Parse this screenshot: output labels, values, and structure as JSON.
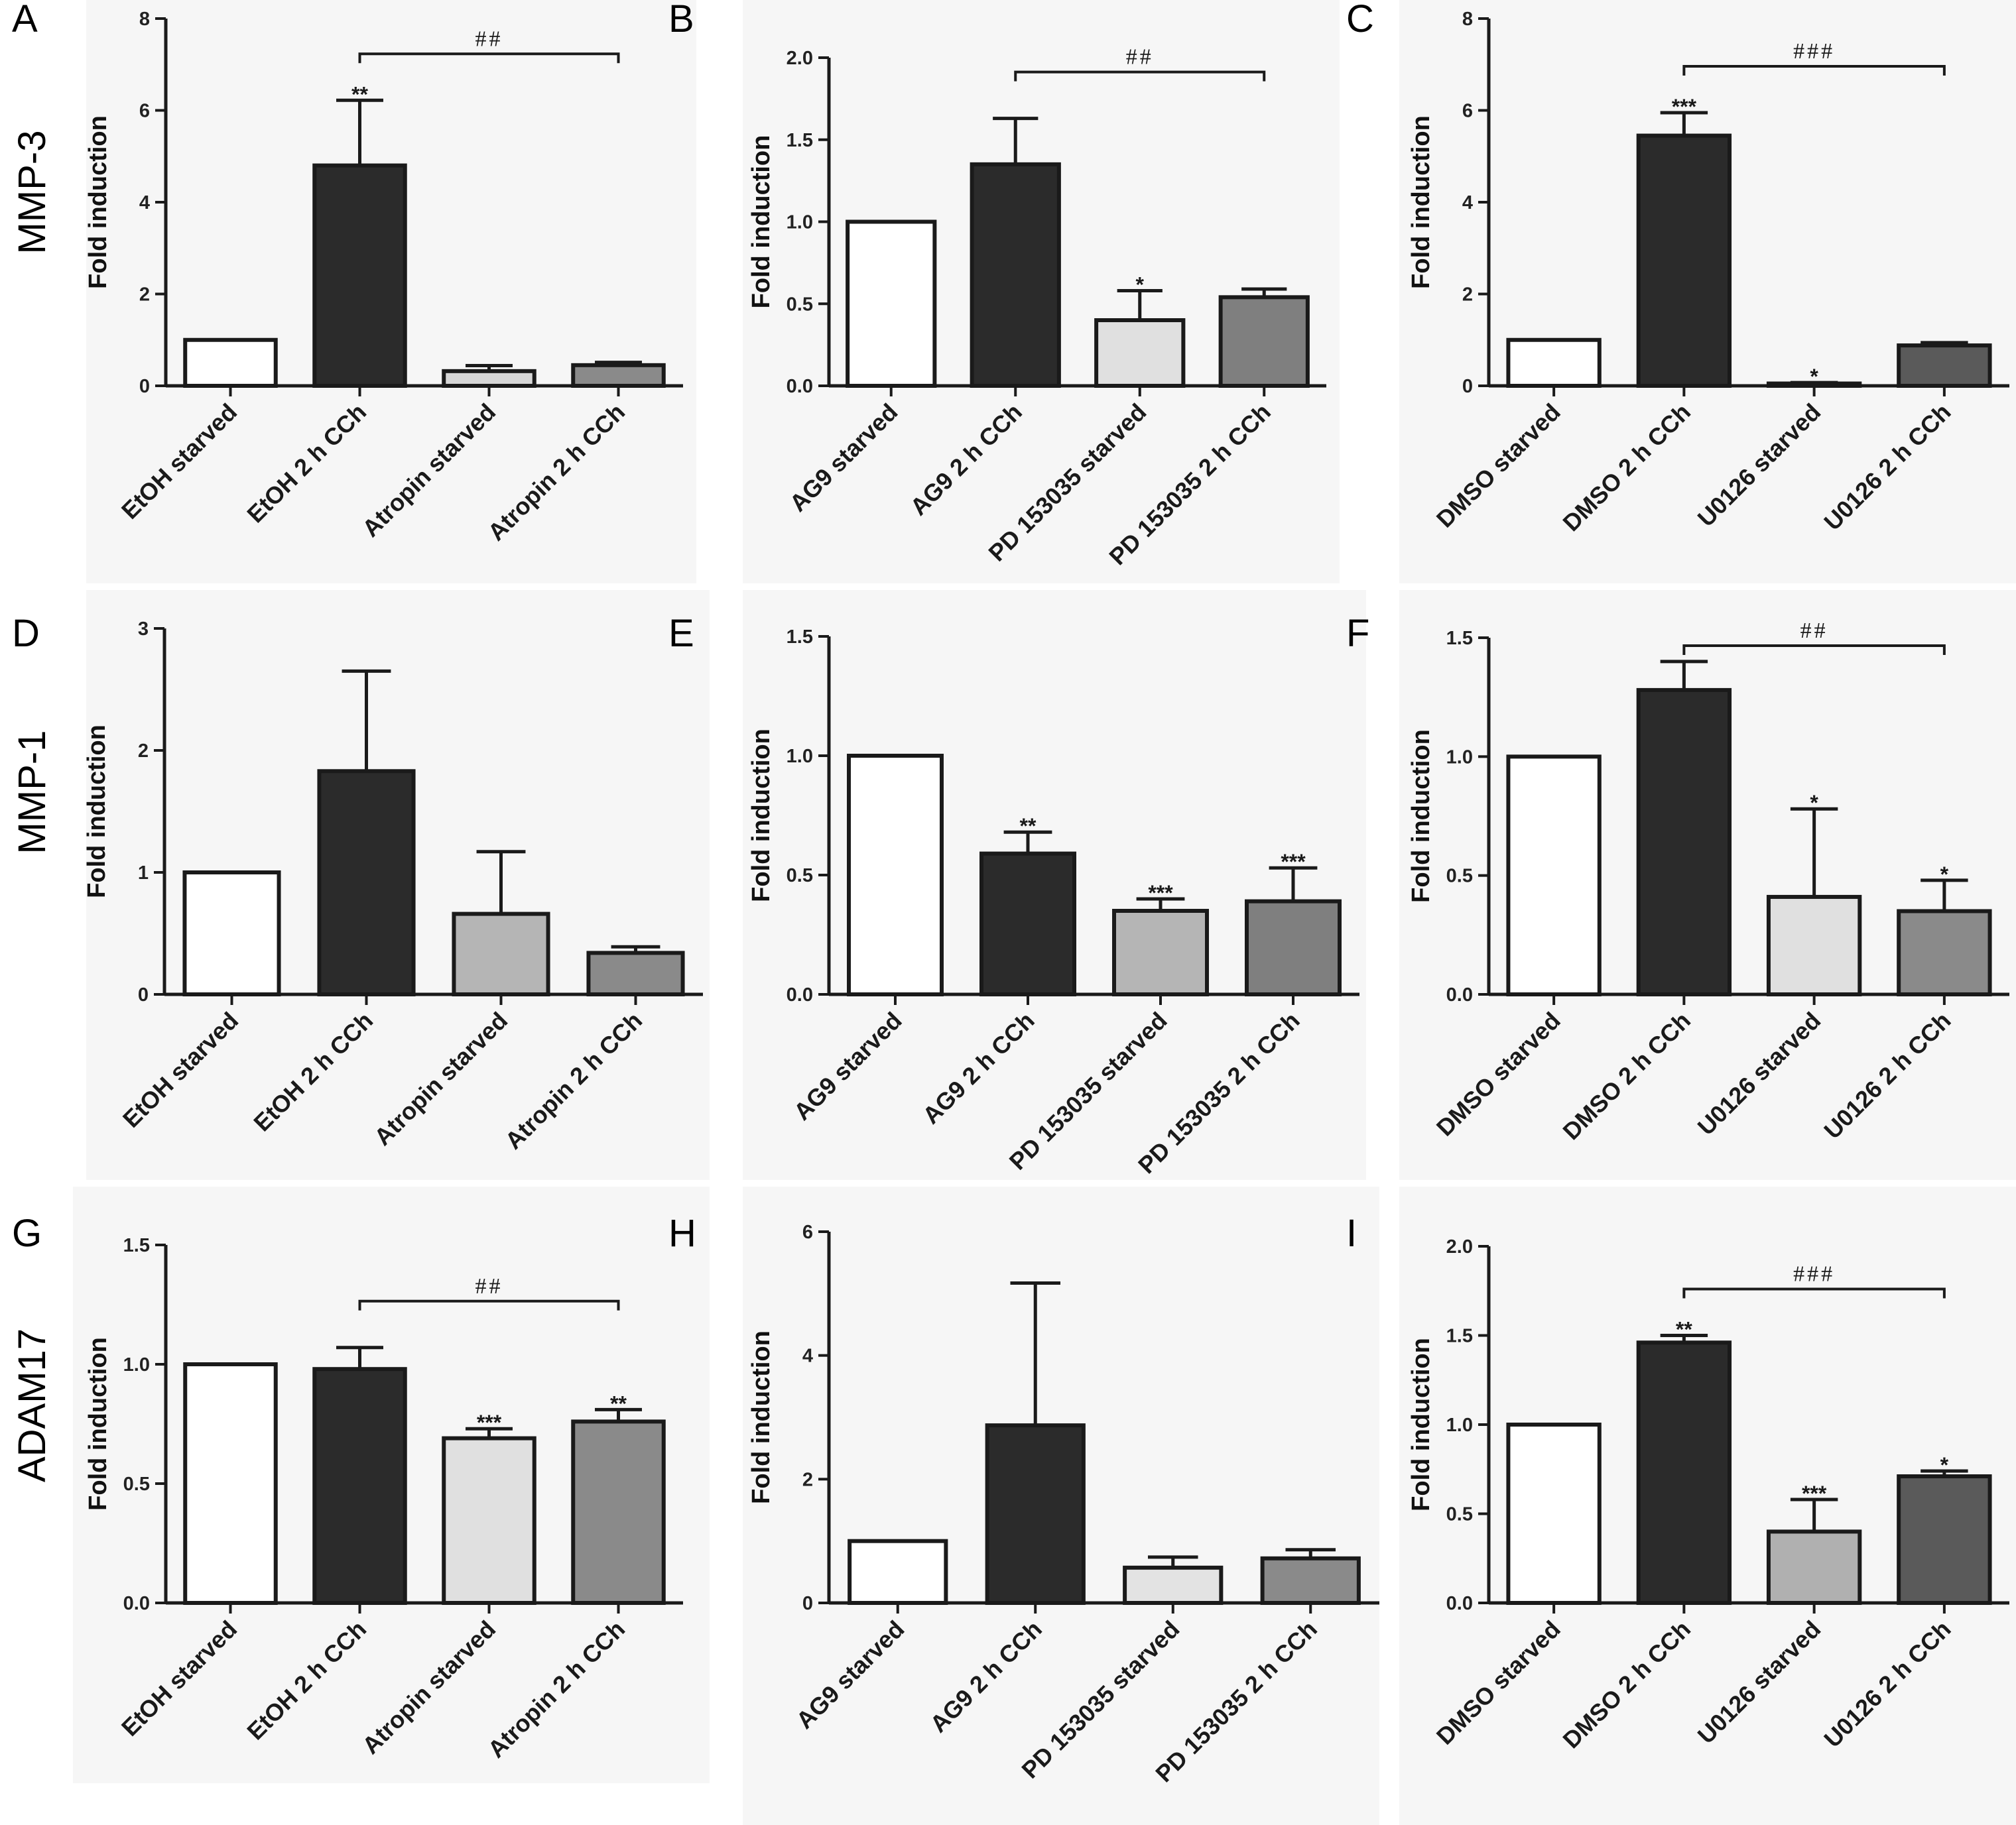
{
  "figure": {
    "row_labels": [
      "MMP-3",
      "MMP-1",
      "ADAM17"
    ]
  },
  "chart_data": [
    {
      "panel": "A",
      "type": "bar",
      "title": "",
      "xlabel": "",
      "ylabel": "Fold induction",
      "ylim": [
        0,
        8
      ],
      "yticks": [
        "0",
        "2",
        "4",
        "6",
        "8"
      ],
      "categories": [
        "EtOH starved",
        "EtOH 2 h CCh",
        "Atropin starved",
        "Atropin 2 h CCh"
      ],
      "values": [
        1.0,
        4.8,
        0.32,
        0.45
      ],
      "errors": [
        0,
        1.42,
        0.12,
        0.06
      ],
      "significance": [
        "",
        "**",
        "",
        ""
      ],
      "bracket": {
        "from": 1,
        "to": 3,
        "label": "##"
      }
    },
    {
      "panel": "B",
      "type": "bar",
      "title": "",
      "xlabel": "",
      "ylabel": "Fold induction",
      "ylim": [
        0,
        2
      ],
      "yticks": [
        "0.0",
        "0.5",
        "1.0",
        "1.5",
        "2.0"
      ],
      "categories": [
        "AG9 starved",
        "AG9  2 h CCh",
        "PD 153035 starved",
        "PD 153035 2 h CCh"
      ],
      "values": [
        1.0,
        1.35,
        0.4,
        0.54
      ],
      "errors": [
        0,
        0.28,
        0.18,
        0.05
      ],
      "significance": [
        "",
        "",
        "*",
        ""
      ],
      "bracket": {
        "from": 1,
        "to": 3,
        "label": "##"
      }
    },
    {
      "panel": "C",
      "type": "bar",
      "title": "",
      "xlabel": "",
      "ylabel": "Fold induction",
      "ylim": [
        0,
        8
      ],
      "yticks": [
        "0",
        "2",
        "4",
        "6",
        "8"
      ],
      "categories": [
        "DMSO starved",
        "DMSO 2 h CCh",
        "U0126 starved",
        "U0126 2 h CCh"
      ],
      "values": [
        1.0,
        5.45,
        0.05,
        0.88
      ],
      "errors": [
        0,
        0.5,
        0.02,
        0.06
      ],
      "significance": [
        "",
        "***",
        "*",
        ""
      ],
      "bracket": {
        "from": 1,
        "to": 3,
        "label": "###"
      }
    },
    {
      "panel": "D",
      "type": "bar",
      "title": "",
      "xlabel": "",
      "ylabel": "Fold induction",
      "ylim": [
        0,
        3
      ],
      "yticks": [
        "0",
        "1",
        "2",
        "3"
      ],
      "categories": [
        "EtOH starved",
        "EtOH 2 h CCh",
        "Atropin starved",
        "Atropin 2 h CCh"
      ],
      "values": [
        1.0,
        1.83,
        0.66,
        0.34
      ],
      "errors": [
        0,
        0.82,
        0.51,
        0.05
      ],
      "significance": [
        "",
        "",
        "",
        ""
      ],
      "bracket": null
    },
    {
      "panel": "E",
      "type": "bar",
      "title": "",
      "xlabel": "",
      "ylabel": "Fold induction",
      "ylim": [
        0,
        1.5
      ],
      "yticks": [
        "0.0",
        "0.5",
        "1.0",
        "1.5"
      ],
      "categories": [
        "AG9 starved",
        "AG9  2 h CCh",
        "PD 153035 starved",
        "PD 153035 2 h CCh"
      ],
      "values": [
        1.0,
        0.59,
        0.35,
        0.39
      ],
      "errors": [
        0,
        0.09,
        0.05,
        0.14
      ],
      "significance": [
        "",
        "**",
        "***",
        "***"
      ],
      "bracket": null
    },
    {
      "panel": "F",
      "type": "bar",
      "title": "",
      "xlabel": "",
      "ylabel": "Fold induction",
      "ylim": [
        0,
        1.5
      ],
      "yticks": [
        "0.0",
        "0.5",
        "1.0",
        "1.5"
      ],
      "categories": [
        "DMSO starved",
        "DMSO 2 h CCh",
        "U0126 starved",
        "U0126 2 h CCh"
      ],
      "values": [
        1.0,
        1.28,
        0.41,
        0.35
      ],
      "errors": [
        0,
        0.12,
        0.37,
        0.13
      ],
      "significance": [
        "",
        "",
        "*",
        "*"
      ],
      "bracket": {
        "from": 1,
        "to": 3,
        "label": "##"
      }
    },
    {
      "panel": "G",
      "type": "bar",
      "title": "",
      "xlabel": "",
      "ylabel": "Fold induction",
      "ylim": [
        0,
        1.5
      ],
      "yticks": [
        "0.0",
        "0.5",
        "1.0",
        "1.5"
      ],
      "categories": [
        "EtOH starved",
        "EtOH 2 h CCh",
        "Atropin starved",
        "Atropin 2 h CCh"
      ],
      "values": [
        1.0,
        0.98,
        0.69,
        0.76
      ],
      "errors": [
        0,
        0.09,
        0.04,
        0.05
      ],
      "significance": [
        "",
        "",
        "***",
        "**"
      ],
      "bracket": {
        "from": 1,
        "to": 3,
        "label": "##"
      }
    },
    {
      "panel": "H",
      "type": "bar",
      "title": "",
      "xlabel": "",
      "ylabel": "Fold induction",
      "ylim": [
        0,
        6
      ],
      "yticks": [
        "0",
        "2",
        "4",
        "6"
      ],
      "categories": [
        "AG9 starved",
        "AG9  2 h CCh",
        "PD 153035 starved",
        "PD 153035 2 h CCh"
      ],
      "values": [
        1.0,
        2.87,
        0.57,
        0.72
      ],
      "errors": [
        0,
        2.3,
        0.17,
        0.14
      ],
      "significance": [
        "",
        "",
        "",
        ""
      ],
      "bracket": null
    },
    {
      "panel": "I",
      "type": "bar",
      "title": "",
      "xlabel": "",
      "ylabel": "Fold induction",
      "ylim": [
        0,
        2
      ],
      "yticks": [
        "0.0",
        "0.5",
        "1.0",
        "1.5",
        "2.0"
      ],
      "categories": [
        "DMSO starved",
        "DMSO 2 h CCh",
        "U0126 starved",
        "U0126 2 h CCh"
      ],
      "values": [
        1.0,
        1.46,
        0.4,
        0.71
      ],
      "errors": [
        0,
        0.04,
        0.18,
        0.03
      ],
      "significance": [
        "",
        "**",
        "***",
        "*"
      ],
      "bracket": {
        "from": 1,
        "to": 3,
        "label": "###"
      }
    }
  ],
  "colors": {
    "bar_fills": [
      "#ffffff",
      "#2b2b2b",
      "#d6d6d6",
      "#8a8a8a"
    ],
    "bar_fills_alt": {
      "B": [
        "#ffffff",
        "#2b2b2b",
        "#e0e0e0",
        "#7f7f7f"
      ],
      "C": [
        "#ffffff",
        "#2b2b2b",
        "#dddddd",
        "#5a5a5a"
      ],
      "D": [
        "#ffffff",
        "#2b2b2b",
        "#b5b5b5",
        "#8a8a8a"
      ],
      "E": [
        "#ffffff",
        "#2b2b2b",
        "#b5b5b5",
        "#7f7f7f"
      ],
      "F": [
        "#ffffff",
        "#2b2b2b",
        "#e0e0e0",
        "#8a8a8a"
      ],
      "G": [
        "#ffffff",
        "#2b2b2b",
        "#e0e0e0",
        "#8a8a8a"
      ],
      "H": [
        "#ffffff",
        "#2b2b2b",
        "#e3e3e3",
        "#8a8a8a"
      ],
      "I": [
        "#ffffff",
        "#2b2b2b",
        "#b0b0b0",
        "#5a5a5a"
      ]
    },
    "stroke": "#1a1a1a",
    "panel_bg": "#f6f6f6"
  }
}
